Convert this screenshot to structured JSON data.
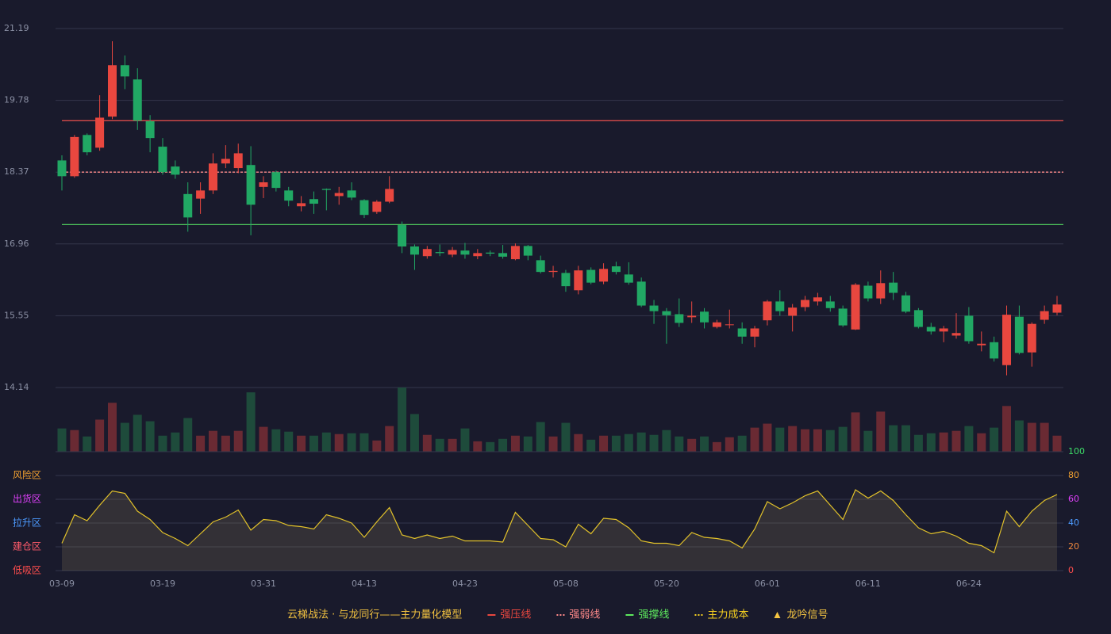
{
  "chart_data": [
    {
      "type": "candlestick",
      "open": [
        18.6,
        18.29,
        19.1,
        18.85,
        19.46,
        20.47,
        20.19,
        19.37,
        18.87,
        18.48,
        17.94,
        17.85,
        18.01,
        18.54,
        18.45,
        18.51,
        18.08,
        18.37,
        18.01,
        17.7,
        17.84,
        18.04,
        17.9,
        18.01,
        17.82,
        17.59,
        17.79,
        17.33,
        16.91,
        16.72,
        16.8,
        16.75,
        16.83,
        16.72,
        16.79,
        16.78,
        16.66,
        16.92,
        16.64,
        16.41,
        16.39,
        16.05,
        16.45,
        16.22,
        16.52,
        16.36,
        16.22,
        15.75,
        15.64,
        15.58,
        15.52,
        15.63,
        15.33,
        15.37,
        15.3,
        15.14,
        15.46,
        15.83,
        15.55,
        15.72,
        15.83,
        15.83,
        15.69,
        15.28,
        16.14,
        15.89,
        16.2,
        15.95,
        15.66,
        15.33,
        15.24,
        15.16,
        15.55,
        14.97,
        15.03,
        14.58,
        15.53,
        14.83,
        15.47,
        15.61
      ],
      "close": [
        18.29,
        19.06,
        18.76,
        19.44,
        20.47,
        20.25,
        19.38,
        19.04,
        18.37,
        18.32,
        17.48,
        18.01,
        18.54,
        18.63,
        18.74,
        17.73,
        18.17,
        18.06,
        17.81,
        17.76,
        17.75,
        18.02,
        17.96,
        17.87,
        17.53,
        17.79,
        18.04,
        16.91,
        16.75,
        16.86,
        16.78,
        16.84,
        16.75,
        16.78,
        16.77,
        16.71,
        16.92,
        16.73,
        16.41,
        16.43,
        16.13,
        16.44,
        16.2,
        16.47,
        16.41,
        16.2,
        15.75,
        15.64,
        15.56,
        15.41,
        15.55,
        15.42,
        15.42,
        15.38,
        15.14,
        15.3,
        15.83,
        15.64,
        15.71,
        15.86,
        15.91,
        15.7,
        15.36,
        16.16,
        15.89,
        16.19,
        16.0,
        15.63,
        15.33,
        15.24,
        15.3,
        15.21,
        15.05,
        15.0,
        14.71,
        15.57,
        14.82,
        15.39,
        15.64,
        15.77
      ],
      "low": [
        18.01,
        18.26,
        18.7,
        18.79,
        19.41,
        20.0,
        19.2,
        18.76,
        18.32,
        18.24,
        17.2,
        17.55,
        17.94,
        18.45,
        18.35,
        17.13,
        17.86,
        17.99,
        17.7,
        17.6,
        17.55,
        17.62,
        17.73,
        17.82,
        17.47,
        17.55,
        17.76,
        16.78,
        16.45,
        16.67,
        16.72,
        16.7,
        16.67,
        16.66,
        16.72,
        16.67,
        16.64,
        16.64,
        16.38,
        16.3,
        16.02,
        15.97,
        16.17,
        16.17,
        16.36,
        16.16,
        15.72,
        15.39,
        15.0,
        15.33,
        15.41,
        15.3,
        15.3,
        15.3,
        15.0,
        14.93,
        15.36,
        15.55,
        15.24,
        15.64,
        15.75,
        15.63,
        15.33,
        15.27,
        15.83,
        15.78,
        15.86,
        15.6,
        15.3,
        15.18,
        15.03,
        15.1,
        15.0,
        14.85,
        14.65,
        14.38,
        14.79,
        14.55,
        15.39,
        15.56
      ],
      "high": [
        18.7,
        19.1,
        19.13,
        19.88,
        20.94,
        20.66,
        20.41,
        19.49,
        19.04,
        18.6,
        18.17,
        18.17,
        18.74,
        18.9,
        18.93,
        18.88,
        18.29,
        18.4,
        18.08,
        17.9,
        17.99,
        18.05,
        18.08,
        18.17,
        17.84,
        17.82,
        18.29,
        17.4,
        16.95,
        16.92,
        16.95,
        16.9,
        16.98,
        16.86,
        16.83,
        16.94,
        16.97,
        16.94,
        16.73,
        16.53,
        16.45,
        16.53,
        16.5,
        16.58,
        16.61,
        16.6,
        16.3,
        15.86,
        15.7,
        15.89,
        15.83,
        15.7,
        15.47,
        15.67,
        15.42,
        15.35,
        15.86,
        16.05,
        15.78,
        15.94,
        16.0,
        15.94,
        15.75,
        16.19,
        16.22,
        16.44,
        16.41,
        16.02,
        15.7,
        15.41,
        15.35,
        15.6,
        15.72,
        15.24,
        15.14,
        15.75,
        15.75,
        15.42,
        15.75,
        15.94
      ],
      "up_color": "#e8473f",
      "down_color": "#21a864",
      "ylim": [
        14.14,
        21.19
      ],
      "yticks": [
        14.14,
        15.55,
        16.96,
        18.37,
        19.78,
        21.19
      ],
      "grid": true,
      "levels": [
        {
          "name": "强压线",
          "value": 19.38,
          "color": "#d94a4a",
          "style": "solid"
        },
        {
          "name": "强弱线",
          "value": 18.37,
          "color": "#ff8a8a",
          "style": "dashed"
        },
        {
          "name": "强撑线",
          "value": 17.34,
          "color": "#4cc35a",
          "style": "solid"
        }
      ]
    },
    {
      "type": "bar",
      "values": [
        29,
        27,
        19,
        40,
        61,
        36,
        46,
        38,
        20,
        24,
        42,
        20,
        26,
        20,
        26,
        74,
        31,
        28,
        25,
        20,
        20,
        24,
        22,
        23,
        23,
        14,
        32,
        80,
        47,
        21,
        16,
        16,
        29,
        13,
        12,
        16,
        20,
        19,
        37,
        19,
        36,
        22,
        15,
        20,
        20,
        22,
        24,
        21,
        27,
        19,
        16,
        19,
        12,
        18,
        20,
        30,
        35,
        30,
        32,
        28,
        28,
        27,
        31,
        49,
        26,
        50,
        33,
        33,
        21,
        23,
        24,
        26,
        32,
        23,
        30,
        57,
        39,
        36,
        36,
        20
      ],
      "up_color": "#6a2a33",
      "down_color": "#1e4b3b",
      "ylim": [
        0,
        80
      ]
    },
    {
      "type": "line",
      "categories": [
        "03-09",
        null,
        null,
        null,
        null,
        null,
        null,
        null,
        "03-19",
        null,
        null,
        null,
        null,
        null,
        null,
        null,
        "03-31",
        null,
        null,
        null,
        null,
        null,
        null,
        null,
        "04-13",
        null,
        null,
        null,
        null,
        null,
        null,
        null,
        "04-23",
        null,
        null,
        null,
        null,
        null,
        null,
        null,
        "05-08",
        null,
        null,
        null,
        null,
        null,
        null,
        null,
        "05-20",
        null,
        null,
        null,
        null,
        null,
        null,
        null,
        "06-01",
        null,
        null,
        null,
        null,
        null,
        null,
        null,
        "06-11",
        null,
        null,
        null,
        null,
        null,
        null,
        null,
        "06-24",
        null,
        null,
        null,
        null,
        null,
        null,
        null
      ],
      "values": [
        23,
        47,
        42,
        55,
        67,
        65,
        50,
        43,
        32,
        27,
        21,
        31,
        41,
        45,
        51,
        34,
        43,
        42,
        38,
        37,
        35,
        47,
        44,
        40,
        28,
        41,
        53,
        30,
        27,
        30,
        27,
        29,
        25,
        25,
        25,
        24,
        49,
        38,
        27,
        26,
        20,
        39,
        31,
        44,
        43,
        36,
        25,
        23,
        23,
        21,
        32,
        28,
        27,
        25,
        19,
        35,
        58,
        52,
        57,
        63,
        67,
        55,
        43,
        68,
        61,
        67,
        59,
        47,
        36,
        31,
        33,
        29,
        23,
        21,
        15,
        50,
        37,
        50,
        59,
        64
      ],
      "color": "#e2c22a",
      "area_color": "rgba(170,150,100,0.18)",
      "ylim": [
        0,
        100
      ],
      "yticks": [
        0,
        20,
        40,
        60,
        80,
        100
      ],
      "ytick_colors": [
        "#ff4d4d",
        "#f0883e",
        "#4d9bff",
        "#e040fb",
        "#f0a030",
        "#3ddc68"
      ],
      "grid": true,
      "zones": [
        {
          "label": "风险区",
          "value": 80,
          "color": "#f0a030"
        },
        {
          "label": "出货区",
          "value": 60,
          "color": "#e040fb"
        },
        {
          "label": "拉升区",
          "value": 40,
          "color": "#4d9bff"
        },
        {
          "label": "建仓区",
          "value": 20,
          "color": "#ff5a6a"
        },
        {
          "label": "低吸区",
          "value": 0,
          "color": "#ff4d4d"
        }
      ]
    }
  ],
  "legend": {
    "title": "云梯战法 · 与龙同行——主力量化模型",
    "title_color": "#f0c040",
    "items": [
      {
        "name": "强压线",
        "color": "#e8473f",
        "symbol": "line"
      },
      {
        "name": "强弱线",
        "color": "#ff8a8a",
        "symbol": "dash"
      },
      {
        "name": "强撑线",
        "color": "#5de85d",
        "symbol": "line"
      },
      {
        "name": "主力成本",
        "color": "#f5d020",
        "symbol": "dash"
      },
      {
        "name": "龙吟信号",
        "color": "#f5c542",
        "symbol": "triangle"
      }
    ]
  }
}
